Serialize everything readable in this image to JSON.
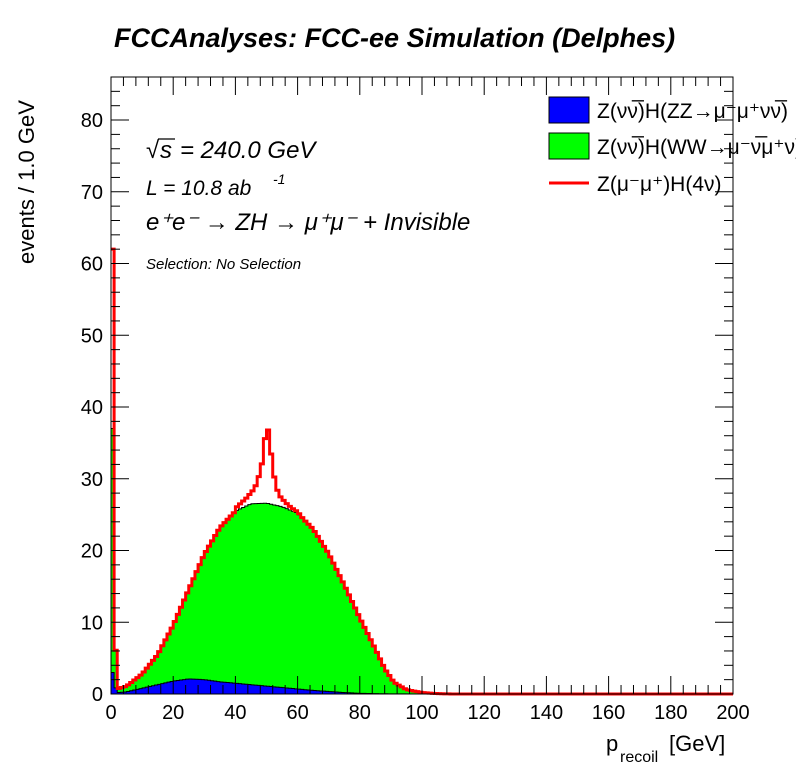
{
  "chart_data": {
    "type": "area",
    "title": "FCCAnalyses: FCC-ee Simulation (Delphes)",
    "xlabel_main": "p",
    "xlabel_sub": "recoil",
    "xlabel_unit": "[GeV]",
    "ylabel": "events / 1.0 GeV",
    "xlim": [
      0,
      200
    ],
    "ylim": [
      0,
      86
    ],
    "x_ticks": [
      0,
      20,
      40,
      60,
      80,
      100,
      120,
      140,
      160,
      180,
      200
    ],
    "y_ticks": [
      0,
      10,
      20,
      30,
      40,
      50,
      60,
      70,
      80
    ],
    "stacked": true,
    "annotations": {
      "sqrt_s": "= 240.0 GeV",
      "lumi": "L = 10.8 ab",
      "lumi_exp": "-1",
      "process": "e⁺e⁻ → ZH → μ⁺μ⁻ + Invisible",
      "selection": "Selection: No Selection"
    },
    "legend_position": "top-right",
    "series": [
      {
        "name": "Z(νν̅)H(ZZ→μ⁻μ⁺νν̅)",
        "color": "#0000ff",
        "style": "filled",
        "points": [
          [
            0,
            4.5
          ],
          [
            1,
            1.5
          ],
          [
            2,
            0.2
          ],
          [
            5,
            0.3
          ],
          [
            10,
            0.8
          ],
          [
            15,
            1.3
          ],
          [
            20,
            1.8
          ],
          [
            25,
            2.1
          ],
          [
            30,
            2.0
          ],
          [
            35,
            1.7
          ],
          [
            40,
            1.5
          ],
          [
            45,
            1.3
          ],
          [
            50,
            1.1
          ],
          [
            55,
            0.9
          ],
          [
            60,
            0.7
          ],
          [
            65,
            0.5
          ],
          [
            70,
            0.35
          ],
          [
            75,
            0.2
          ],
          [
            80,
            0.1
          ],
          [
            85,
            0.05
          ],
          [
            90,
            0.02
          ],
          [
            100,
            0
          ],
          [
            200,
            0
          ]
        ]
      },
      {
        "name": "Z(νν̅)H(WW→μ⁻ν̅μ⁺ν)",
        "color": "#00ff00",
        "style": "filled",
        "points": [
          [
            0,
            58
          ],
          [
            1,
            10
          ],
          [
            2,
            0.5
          ],
          [
            5,
            0.8
          ],
          [
            10,
            2.0
          ],
          [
            15,
            4.2
          ],
          [
            20,
            7.8
          ],
          [
            25,
            12.5
          ],
          [
            30,
            17.5
          ],
          [
            35,
            21.5
          ],
          [
            40,
            24.0
          ],
          [
            45,
            25.2
          ],
          [
            50,
            25.5
          ],
          [
            55,
            25.2
          ],
          [
            60,
            24.5
          ],
          [
            65,
            22.5
          ],
          [
            70,
            19.2
          ],
          [
            75,
            15.0
          ],
          [
            80,
            10.5
          ],
          [
            85,
            6.2
          ],
          [
            88,
            3.5
          ],
          [
            91,
            1.6
          ],
          [
            95,
            0.6
          ],
          [
            100,
            0.2
          ],
          [
            105,
            0.05
          ],
          [
            110,
            0
          ],
          [
            200,
            0
          ]
        ]
      },
      {
        "name": "Z(μ⁻μ⁺)H(4ν)",
        "color": "#ff0000",
        "style": "line",
        "points": [
          [
            0,
            0
          ],
          [
            1,
            0
          ],
          [
            2,
            0
          ],
          [
            200,
            0
          ]
        ],
        "peaks": [
          [
            0,
            62
          ],
          [
            1,
            12
          ],
          [
            50,
            37
          ],
          [
            51,
            34
          ],
          [
            49,
            32
          ]
        ],
        "offset_around_center": [
          [
            40,
            0.4
          ],
          [
            42,
            0.8
          ],
          [
            44,
            1.2
          ],
          [
            46,
            2.0
          ],
          [
            47,
            3.0
          ],
          [
            48,
            4.5
          ],
          [
            49,
            6.5
          ],
          [
            50,
            11.5
          ],
          [
            51,
            9.0
          ],
          [
            52,
            5.0
          ],
          [
            53,
            2.8
          ],
          [
            54,
            1.5
          ],
          [
            56,
            0.8
          ],
          [
            58,
            0.4
          ],
          [
            60,
            0.2
          ],
          [
            62,
            0
          ]
        ]
      }
    ]
  }
}
